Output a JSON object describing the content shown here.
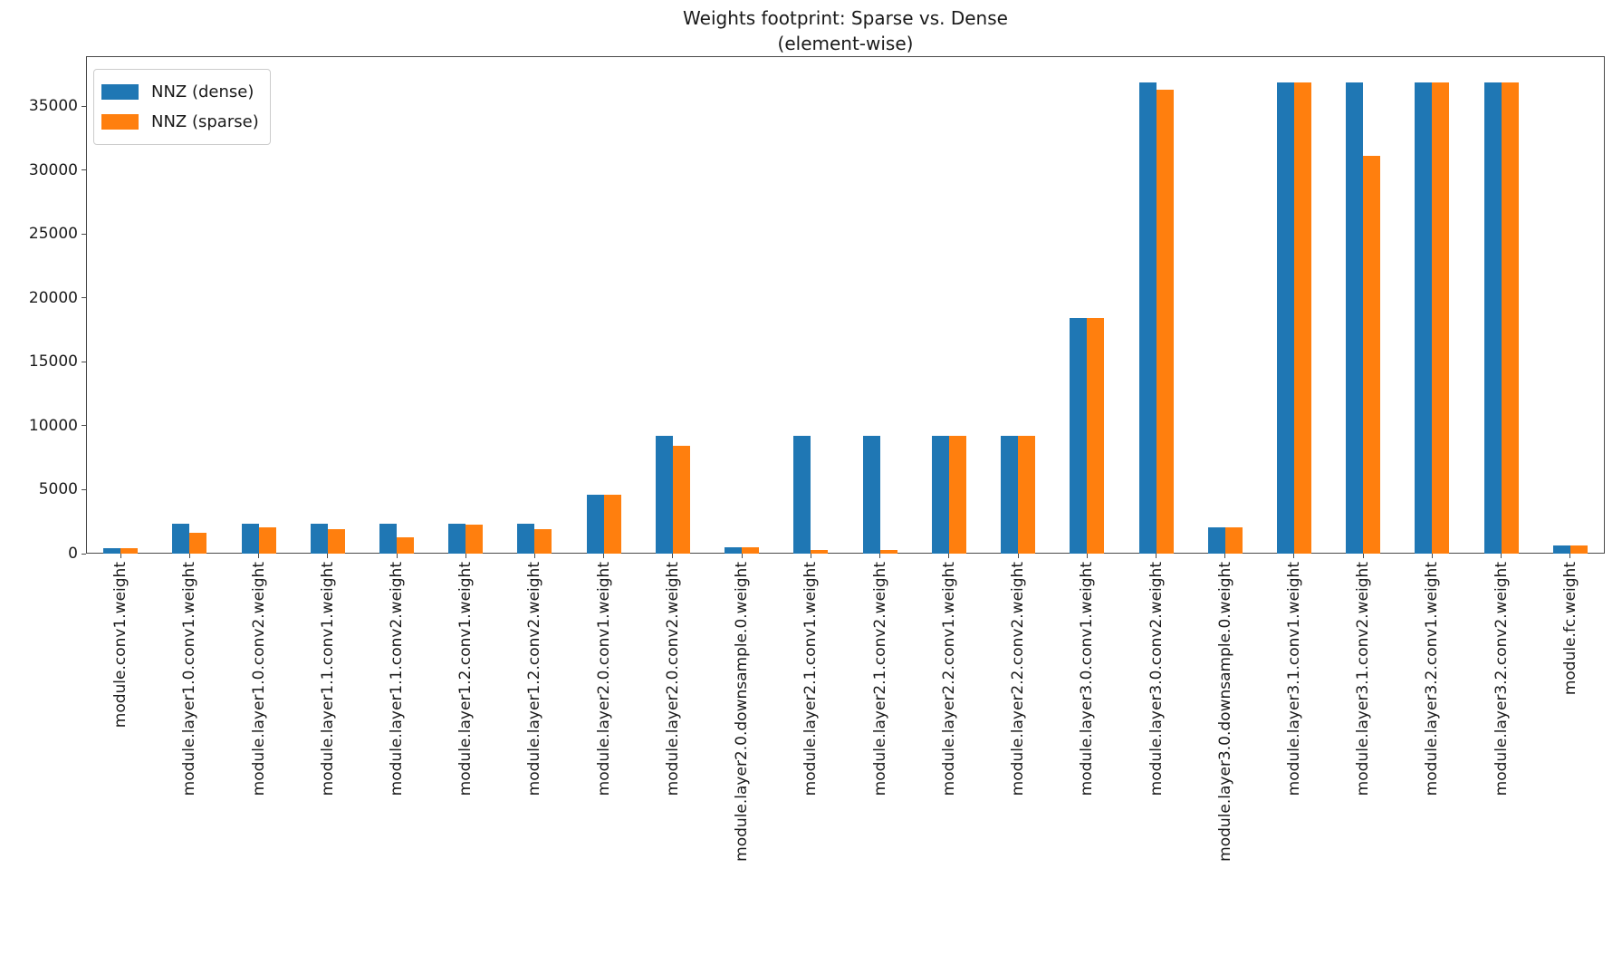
{
  "chart_data": {
    "type": "bar",
    "title": "Weights footprint: Sparse vs. Dense",
    "subtitle": "(element-wise)",
    "xlabel": "",
    "ylabel": "",
    "grid": false,
    "legend_position": "upper left",
    "ylim": [
      0,
      38900
    ],
    "yticks": [
      0,
      5000,
      10000,
      15000,
      20000,
      25000,
      30000,
      35000
    ],
    "categories": [
      "module.conv1.weight",
      "module.layer1.0.conv1.weight",
      "module.layer1.0.conv2.weight",
      "module.layer1.1.conv1.weight",
      "module.layer1.1.conv2.weight",
      "module.layer1.2.conv1.weight",
      "module.layer1.2.conv2.weight",
      "module.layer2.0.conv1.weight",
      "module.layer2.0.conv2.weight",
      "module.layer2.0.downsample.0.weight",
      "module.layer2.1.conv1.weight",
      "module.layer2.1.conv2.weight",
      "module.layer2.2.conv1.weight",
      "module.layer2.2.conv2.weight",
      "module.layer3.0.conv1.weight",
      "module.layer3.0.conv2.weight",
      "module.layer3.0.downsample.0.weight",
      "module.layer3.1.conv1.weight",
      "module.layer3.1.conv2.weight",
      "module.layer3.2.conv1.weight",
      "module.layer3.2.conv2.weight",
      "module.fc.weight"
    ],
    "series": [
      {
        "name": "NNZ (dense)",
        "color": "#1f77b4",
        "values": [
          432,
          2304,
          2304,
          2304,
          2304,
          2304,
          2304,
          4608,
          9216,
          512,
          9216,
          9216,
          9216,
          9216,
          18432,
          36864,
          2048,
          36864,
          36864,
          36864,
          36864,
          640
        ]
      },
      {
        "name": "NNZ (sparse)",
        "color": "#ff7f0e",
        "values": [
          432,
          1600,
          2050,
          1900,
          1300,
          2250,
          1900,
          4608,
          8400,
          512,
          280,
          280,
          9216,
          9216,
          18432,
          36250,
          2048,
          36864,
          31100,
          36864,
          36864,
          640
        ]
      }
    ]
  }
}
